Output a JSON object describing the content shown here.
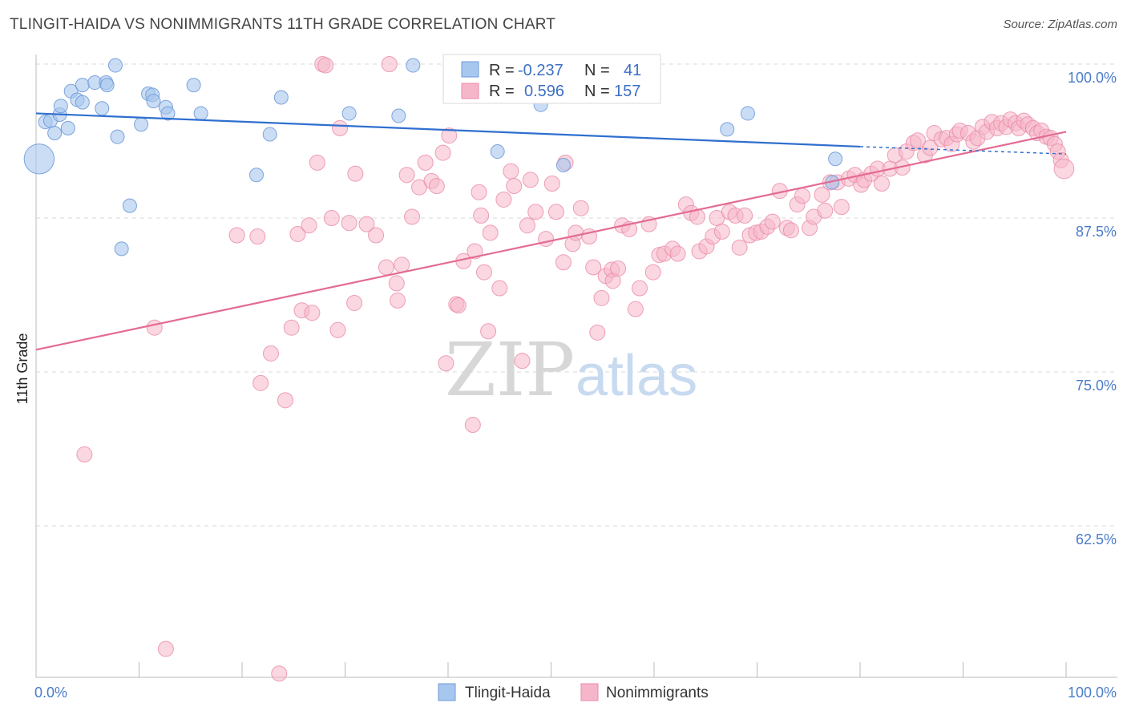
{
  "title": "TLINGIT-HAIDA VS NONIMMIGRANTS 11TH GRADE CORRELATION CHART",
  "source": "Source: ZipAtlas.com",
  "watermark": {
    "part1": "ZIP",
    "part2": "atlas"
  },
  "colors": {
    "blue_fill": "#a7c7ef",
    "blue_stroke": "#6f9bd8",
    "blue_line": "#2f6fcf",
    "pink_fill": "#f6b6c9",
    "pink_stroke": "#ea8aa8",
    "pink_line": "#e46b92",
    "grid": "#d8d8d8",
    "tick_text": "#4a7cc9"
  },
  "stats": {
    "r_label": "R =",
    "n_label": "N =",
    "blue": {
      "r": "-0.237",
      "n": "41"
    },
    "pink": {
      "r": "0.596",
      "n": "157"
    }
  },
  "legend": {
    "blue": "Tlingit-Haida",
    "pink": "Nonimmigrants"
  },
  "chart_data": {
    "type": "scatter",
    "xlabel": "",
    "ylabel": "11th Grade",
    "xlim": [
      0,
      100
    ],
    "ylim": [
      50,
      100.5
    ],
    "x_tick_labels": {
      "left": "0.0%",
      "right": "100.0%"
    },
    "y_ticks": [
      {
        "value": 100,
        "label": "100.0%"
      },
      {
        "value": 87.5,
        "label": "87.5%"
      },
      {
        "value": 75,
        "label": "75.0%"
      },
      {
        "value": 62.5,
        "label": "62.5%"
      }
    ],
    "series": [
      {
        "name": "Tlingit-Haida",
        "color": "blue",
        "trend": {
          "x0": 0,
          "y0": 96.0,
          "x1": 80,
          "y1": 93.3,
          "dash_to_x": 100,
          "dash_to_y": 92.7
        },
        "points": [
          [
            0.3,
            92.3,
            2.2
          ],
          [
            0.9,
            95.3,
            1
          ],
          [
            1.4,
            95.4,
            1
          ],
          [
            1.8,
            94.4,
            1
          ],
          [
            2.3,
            95.9,
            1
          ],
          [
            2.4,
            96.6,
            1
          ],
          [
            3.1,
            94.8,
            1
          ],
          [
            3.4,
            97.8,
            1
          ],
          [
            4.0,
            97.1,
            1
          ],
          [
            4.5,
            96.9,
            1
          ],
          [
            4.5,
            98.3,
            1
          ],
          [
            5.7,
            98.5,
            1
          ],
          [
            6.4,
            96.4,
            1
          ],
          [
            6.8,
            98.5,
            1
          ],
          [
            6.9,
            98.3,
            1
          ],
          [
            7.7,
            99.9,
            1
          ],
          [
            7.9,
            94.1,
            1
          ],
          [
            8.3,
            85.0,
            1
          ],
          [
            9.1,
            88.5,
            1
          ],
          [
            10.2,
            95.1,
            1
          ],
          [
            10.9,
            97.6,
            1
          ],
          [
            11.3,
            97.5,
            1
          ],
          [
            11.4,
            97.0,
            1
          ],
          [
            12.6,
            96.5,
            1
          ],
          [
            12.8,
            96.0,
            1
          ],
          [
            15.3,
            98.3,
            1
          ],
          [
            16.0,
            96.0,
            1
          ],
          [
            21.4,
            91.0,
            1
          ],
          [
            22.7,
            94.3,
            1
          ],
          [
            23.8,
            97.3,
            1
          ],
          [
            30.4,
            96.0,
            1
          ],
          [
            35.2,
            95.8,
            1
          ],
          [
            36.6,
            99.9,
            1
          ],
          [
            44.8,
            92.9,
            1
          ],
          [
            49.0,
            96.7,
            1
          ],
          [
            51.2,
            91.8,
            1
          ],
          [
            67.1,
            94.7,
            1
          ],
          [
            69.1,
            96.0,
            1
          ],
          [
            77.3,
            90.4,
            1
          ],
          [
            77.6,
            92.3,
            1
          ]
        ]
      },
      {
        "name": "Nonimmigrants",
        "color": "pink",
        "trend": {
          "x0": 0,
          "y0": 76.8,
          "x1": 100,
          "y1": 94.5
        },
        "points": [
          [
            4.7,
            68.3,
            1
          ],
          [
            11.5,
            78.6,
            1
          ],
          [
            12.6,
            52.5,
            1
          ],
          [
            19.5,
            86.1,
            1
          ],
          [
            21.5,
            86.0,
            1
          ],
          [
            21.8,
            74.1,
            1
          ],
          [
            22.8,
            76.5,
            1
          ],
          [
            23.6,
            50.5,
            1
          ],
          [
            24.2,
            72.7,
            1
          ],
          [
            24.8,
            78.6,
            1
          ],
          [
            25.4,
            86.2,
            1
          ],
          [
            25.8,
            80.0,
            1
          ],
          [
            26.5,
            86.9,
            1
          ],
          [
            26.8,
            79.8,
            1
          ],
          [
            27.3,
            92.0,
            1
          ],
          [
            27.8,
            100.0,
            1
          ],
          [
            28.1,
            99.9,
            1
          ],
          [
            28.7,
            87.5,
            1
          ],
          [
            29.3,
            78.4,
            1
          ],
          [
            29.5,
            94.8,
            1
          ],
          [
            30.4,
            87.1,
            1
          ],
          [
            30.9,
            80.6,
            1
          ],
          [
            31.0,
            91.1,
            1
          ],
          [
            32.1,
            87.0,
            1
          ],
          [
            33.0,
            86.1,
            1
          ],
          [
            34.0,
            83.5,
            1
          ],
          [
            34.3,
            100.0,
            1
          ],
          [
            35.0,
            82.2,
            1
          ],
          [
            35.1,
            80.8,
            1
          ],
          [
            35.5,
            83.7,
            1
          ],
          [
            36.0,
            91.0,
            1
          ],
          [
            36.5,
            87.6,
            1
          ],
          [
            37.2,
            90.0,
            1
          ],
          [
            37.8,
            92.0,
            1
          ],
          [
            38.4,
            90.5,
            1
          ],
          [
            38.9,
            90.1,
            1
          ],
          [
            39.5,
            92.8,
            1
          ],
          [
            39.8,
            75.7,
            1
          ],
          [
            40.1,
            94.2,
            1
          ],
          [
            40.8,
            80.5,
            1
          ],
          [
            41.0,
            80.4,
            1
          ],
          [
            41.5,
            84.0,
            1
          ],
          [
            42.4,
            70.7,
            1
          ],
          [
            42.6,
            84.8,
            1
          ],
          [
            43.0,
            89.6,
            1
          ],
          [
            43.2,
            87.7,
            1
          ],
          [
            43.5,
            83.1,
            1
          ],
          [
            43.9,
            78.3,
            1
          ],
          [
            44.1,
            86.3,
            1
          ],
          [
            45.0,
            81.8,
            1
          ],
          [
            45.4,
            89.0,
            1
          ],
          [
            46.1,
            91.3,
            1
          ],
          [
            46.4,
            90.1,
            1
          ],
          [
            47.2,
            75.9,
            1
          ],
          [
            47.7,
            86.9,
            1
          ],
          [
            48.0,
            90.6,
            1
          ],
          [
            48.5,
            88.0,
            1
          ],
          [
            49.5,
            85.8,
            1
          ],
          [
            50.1,
            90.3,
            1
          ],
          [
            50.5,
            88.0,
            1
          ],
          [
            51.2,
            83.9,
            1
          ],
          [
            51.4,
            92.0,
            1
          ],
          [
            52.1,
            85.4,
            1
          ],
          [
            52.4,
            86.3,
            1
          ],
          [
            52.9,
            88.3,
            1
          ],
          [
            53.7,
            86.0,
            1
          ],
          [
            54.1,
            83.5,
            1
          ],
          [
            54.5,
            78.2,
            1
          ],
          [
            54.9,
            81.0,
            1
          ],
          [
            55.3,
            82.8,
            1
          ],
          [
            55.9,
            83.3,
            1
          ],
          [
            56.0,
            82.4,
            1
          ],
          [
            56.5,
            83.4,
            1
          ],
          [
            56.9,
            86.9,
            1
          ],
          [
            57.6,
            86.6,
            1
          ],
          [
            58.2,
            80.1,
            1
          ],
          [
            58.6,
            81.8,
            1
          ],
          [
            59.5,
            87.0,
            1
          ],
          [
            59.9,
            83.1,
            1
          ],
          [
            60.5,
            84.5,
            1
          ],
          [
            61.0,
            84.6,
            1
          ],
          [
            61.8,
            85.0,
            1
          ],
          [
            62.3,
            84.6,
            1
          ],
          [
            63.1,
            88.6,
            1
          ],
          [
            63.6,
            87.9,
            1
          ],
          [
            64.2,
            87.6,
            1
          ],
          [
            64.4,
            84.8,
            1
          ],
          [
            65.1,
            85.2,
            1
          ],
          [
            65.7,
            86.0,
            1
          ],
          [
            66.1,
            87.5,
            1
          ],
          [
            66.6,
            86.4,
            1
          ],
          [
            67.3,
            88.0,
            1
          ],
          [
            67.9,
            87.7,
            1
          ],
          [
            68.3,
            85.1,
            1
          ],
          [
            68.8,
            87.7,
            1
          ],
          [
            69.3,
            86.1,
            1
          ],
          [
            69.9,
            86.3,
            1
          ],
          [
            70.4,
            86.4,
            1
          ],
          [
            71.0,
            86.8,
            1
          ],
          [
            71.5,
            87.2,
            1
          ],
          [
            72.2,
            89.7,
            1
          ],
          [
            72.9,
            86.7,
            1
          ],
          [
            73.3,
            86.5,
            1
          ],
          [
            73.9,
            88.6,
            1
          ],
          [
            74.4,
            89.3,
            1
          ],
          [
            75.1,
            86.7,
            1
          ],
          [
            75.5,
            87.6,
            1
          ],
          [
            76.3,
            89.4,
            1
          ],
          [
            76.6,
            88.1,
            1
          ],
          [
            77.1,
            90.4,
            1
          ],
          [
            77.8,
            90.4,
            1
          ],
          [
            78.2,
            88.4,
            1
          ],
          [
            78.9,
            90.7,
            1
          ],
          [
            79.5,
            91.0,
            1
          ],
          [
            80.1,
            90.2,
            1
          ],
          [
            80.4,
            90.6,
            1
          ],
          [
            81.1,
            91.1,
            1
          ],
          [
            81.7,
            91.5,
            1
          ],
          [
            82.1,
            90.3,
            1
          ],
          [
            82.9,
            91.5,
            1
          ],
          [
            83.4,
            92.6,
            1
          ],
          [
            84.1,
            91.6,
            1
          ],
          [
            84.5,
            92.9,
            1
          ],
          [
            85.2,
            93.6,
            1
          ],
          [
            85.6,
            93.8,
            1
          ],
          [
            86.3,
            92.6,
            1
          ],
          [
            86.8,
            93.2,
            1
          ],
          [
            87.2,
            94.4,
            1
          ],
          [
            87.9,
            93.9,
            1
          ],
          [
            88.4,
            94.0,
            1
          ],
          [
            88.9,
            93.5,
            1
          ],
          [
            89.4,
            94.3,
            1
          ],
          [
            89.7,
            94.6,
            1
          ],
          [
            90.5,
            94.4,
            1
          ],
          [
            91.0,
            93.7,
            1
          ],
          [
            91.4,
            94.0,
            1
          ],
          [
            91.9,
            94.9,
            1
          ],
          [
            92.3,
            94.5,
            1
          ],
          [
            92.8,
            95.3,
            1
          ],
          [
            93.3,
            94.8,
            1
          ],
          [
            93.7,
            95.2,
            1
          ],
          [
            94.2,
            94.9,
            1
          ],
          [
            94.6,
            95.5,
            1
          ],
          [
            95.1,
            95.2,
            1
          ],
          [
            95.4,
            94.8,
            1
          ],
          [
            95.9,
            95.4,
            1
          ],
          [
            96.3,
            95.1,
            1
          ],
          [
            96.8,
            94.8,
            1
          ],
          [
            97.2,
            94.4,
            1
          ],
          [
            97.6,
            94.6,
            1
          ],
          [
            98.1,
            94.1,
            1
          ],
          [
            98.5,
            94.0,
            1
          ],
          [
            98.9,
            93.5,
            1
          ],
          [
            99.2,
            92.9,
            1
          ],
          [
            99.5,
            92.2,
            1
          ],
          [
            99.8,
            91.5,
            1.3
          ]
        ]
      }
    ]
  }
}
